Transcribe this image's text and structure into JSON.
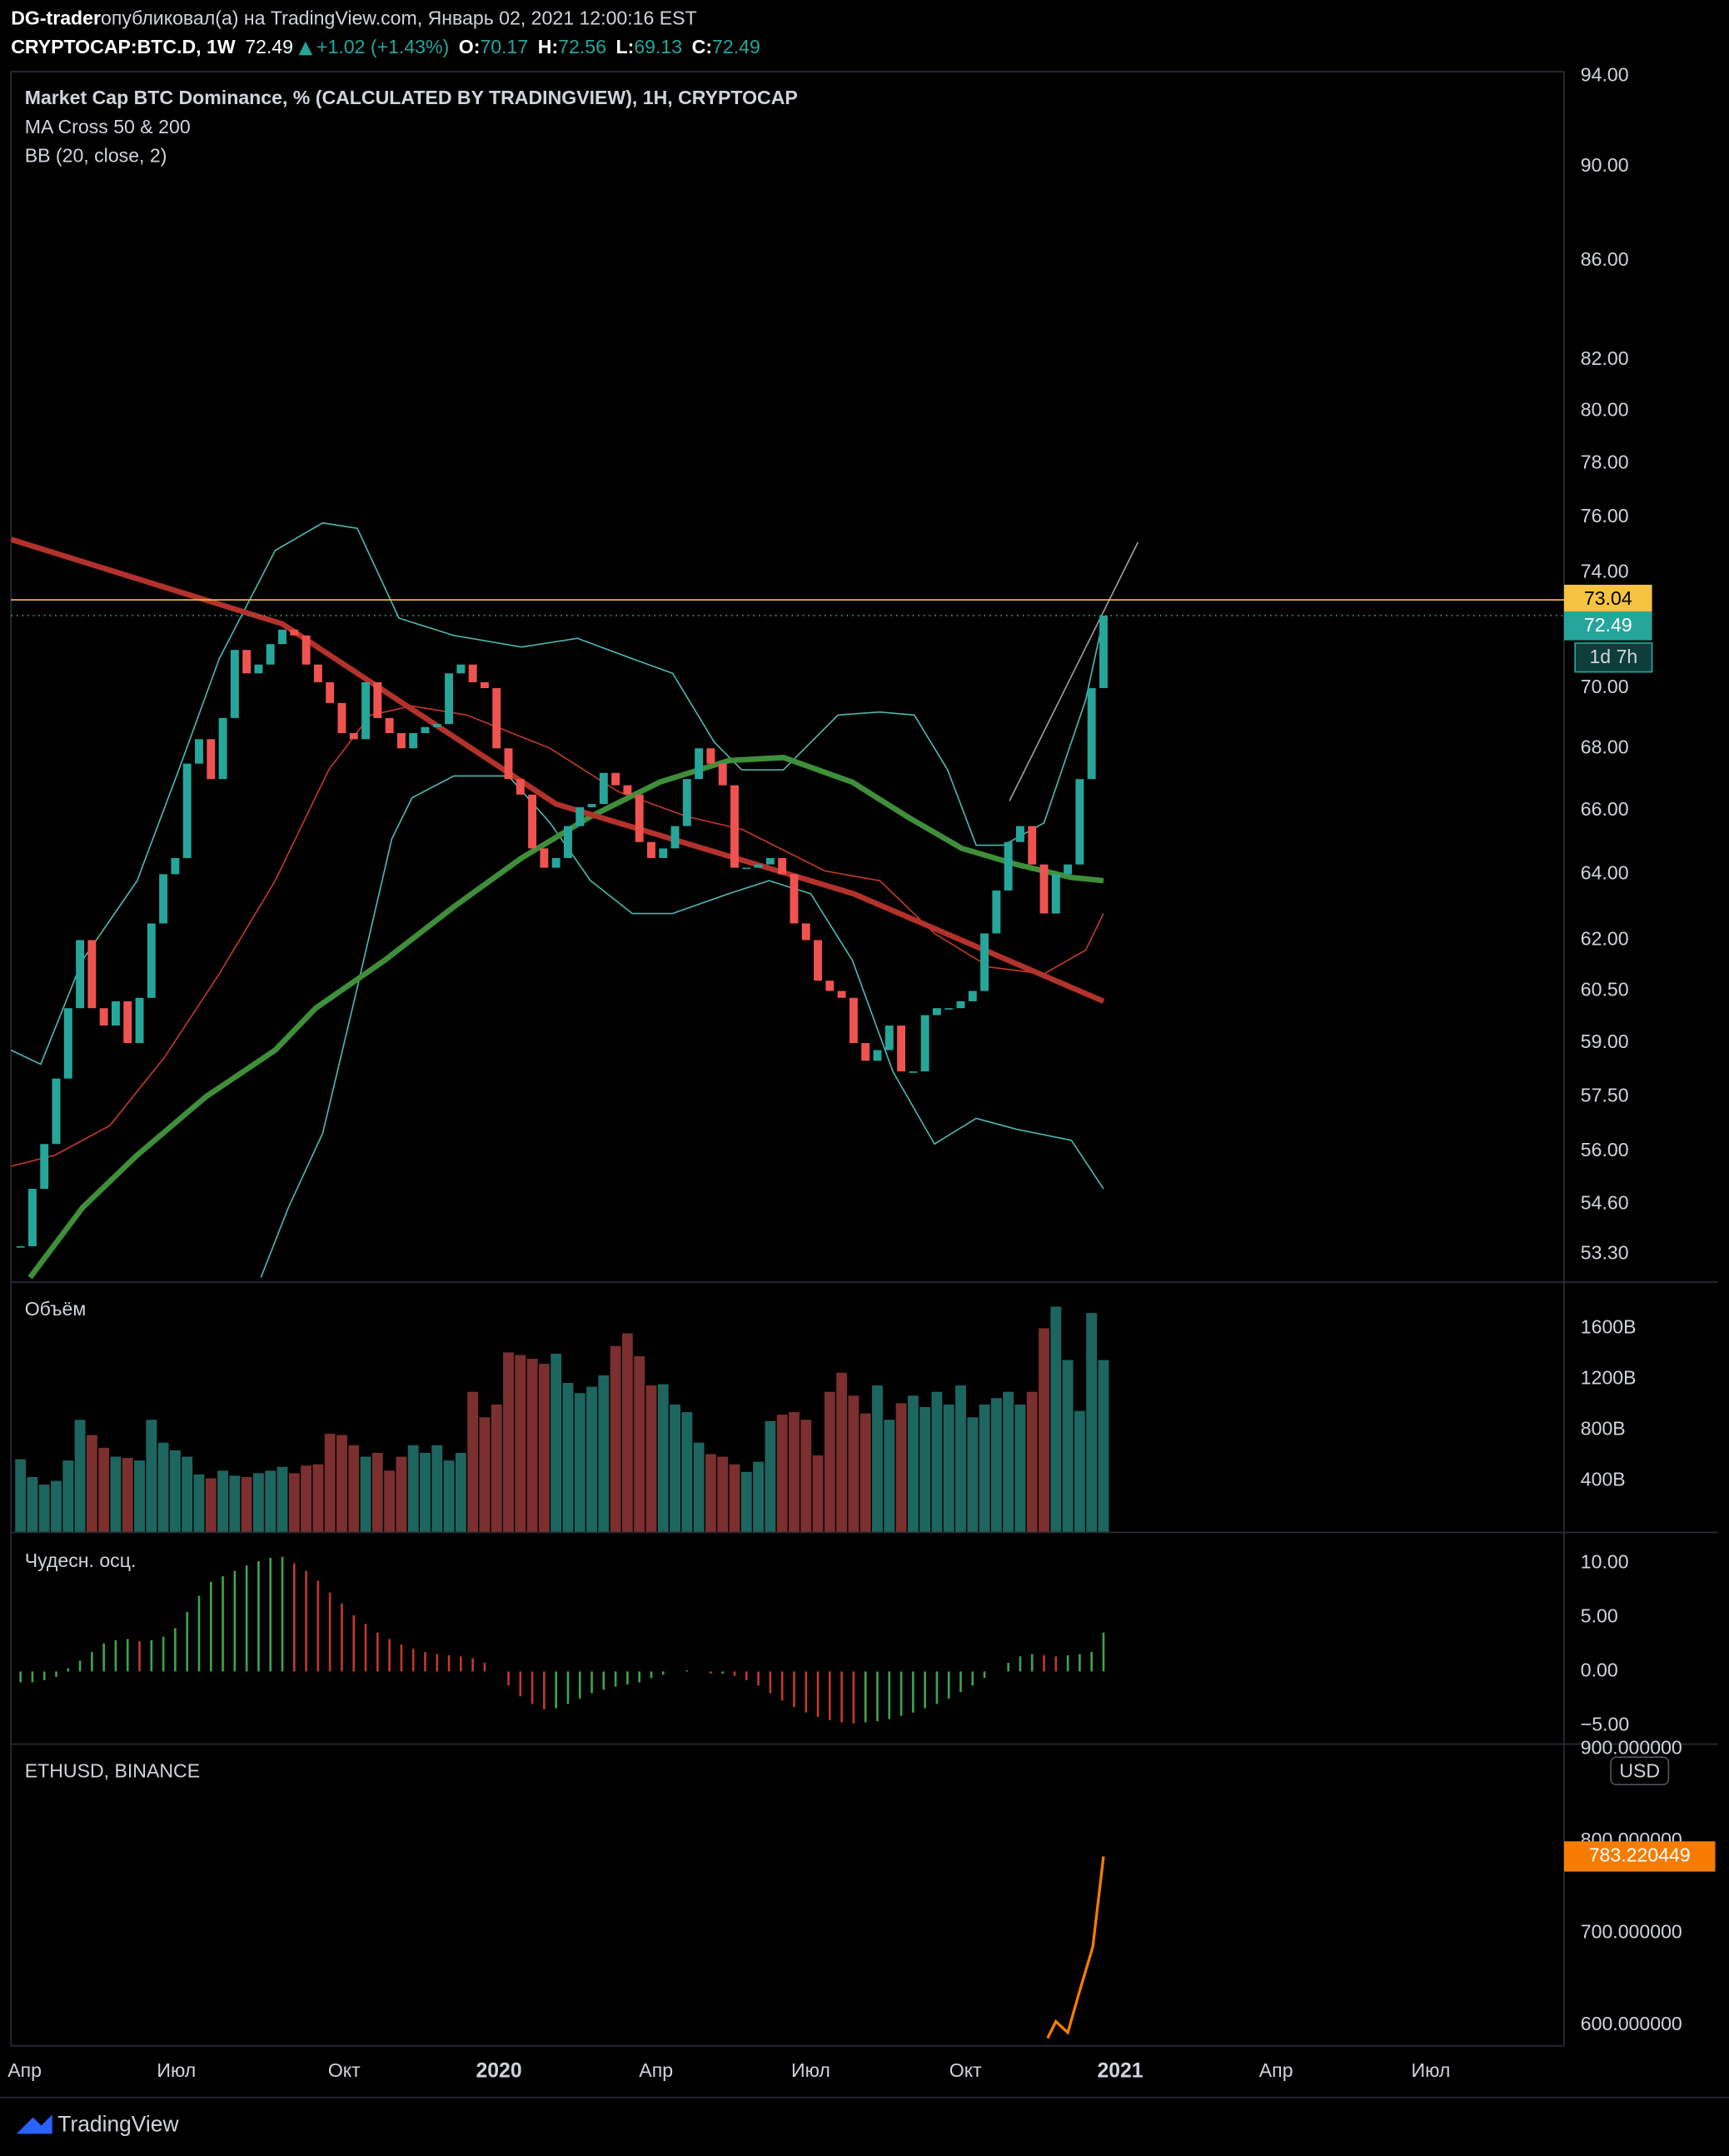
{
  "header": {
    "author": "DG-trader",
    "published": " опубликовал(а) на TradingView.com, Январь 02, 2021 12:00:16 EST",
    "symbol": "CRYPTOCAP:BTC.D, 1W",
    "last": "72.49",
    "change": "+1.02 (+1.43%)",
    "ohlc": [
      {
        "label": "O:",
        "value": "70.17"
      },
      {
        "label": "H:",
        "value": "72.56"
      },
      {
        "label": "L:",
        "value": "69.13"
      },
      {
        "label": "C:",
        "value": "72.49"
      }
    ]
  },
  "chart_data": [
    {
      "type": "candlestick",
      "title": "Market Cap BTC Dominance, % (CALCULATED BY TRADINGVIEW), 1H, CRYPTOCAP",
      "indicators": [
        "MA Cross 50 & 200",
        "BB (20, close, 2)"
      ],
      "close": [
        53.5,
        55,
        56.2,
        58,
        60,
        62,
        60,
        59.5,
        60.2,
        59,
        60.3,
        62.5,
        64,
        64.5,
        67.5,
        68.3,
        67,
        69,
        71.3,
        70.5,
        70.8,
        71.5,
        72,
        71.8,
        70.8,
        70.2,
        69.5,
        68.5,
        68.3,
        70.2,
        69,
        68.5,
        68,
        68.5,
        68.7,
        68.8,
        70.5,
        70.8,
        70.2,
        70,
        68,
        67,
        66.5,
        64.8,
        64.2,
        64.5,
        65.5,
        66.1,
        66.2,
        67.2,
        66.8,
        66.5,
        65,
        64.5,
        64.8,
        65.5,
        67,
        68,
        67.5,
        66.8,
        64.2,
        64.2,
        64.3,
        64.5,
        64,
        62.5,
        62,
        60.8,
        60.5,
        60.3,
        59,
        58.5,
        58.8,
        59.5,
        58.2,
        58.2,
        59.8,
        60,
        60,
        60.2,
        60.5,
        62.2,
        63.5,
        65,
        65.5,
        64.3,
        62.8,
        64,
        64.3,
        67,
        70,
        72.49
      ],
      "up_color": "#26a69a",
      "down_color": "#ef5350",
      "log_scale": true,
      "ylim": [
        52.6,
        94.2
      ],
      "yticks": [
        {
          "value": 94,
          "label": "94.00"
        },
        {
          "value": 90,
          "label": "90.00"
        },
        {
          "value": 86,
          "label": "86.00"
        },
        {
          "value": 82,
          "label": "82.00"
        },
        {
          "value": 80,
          "label": "80.00"
        },
        {
          "value": 78,
          "label": "78.00"
        },
        {
          "value": 76,
          "label": "76.00"
        },
        {
          "value": 74,
          "label": "74.00"
        },
        {
          "value": 70,
          "label": "70.00"
        },
        {
          "value": 68,
          "label": "68.00"
        },
        {
          "value": 66,
          "label": "66.00"
        },
        {
          "value": 64,
          "label": "64.00"
        },
        {
          "value": 62,
          "label": "62.00"
        },
        {
          "value": 60.5,
          "label": "60.50"
        },
        {
          "value": 59,
          "label": "59.00"
        },
        {
          "value": 57.5,
          "label": "57.50"
        },
        {
          "value": 56,
          "label": "56.00"
        },
        {
          "value": 54.6,
          "label": "54.60"
        },
        {
          "value": 53.3,
          "label": "53.30"
        }
      ],
      "xlim": [
        -0.8,
        129.7
      ],
      "xticks": [
        {
          "value": 0.35,
          "label": "Апр"
        },
        {
          "value": 13.1,
          "label": "Июл"
        },
        {
          "value": 27.2,
          "label": "Окт"
        },
        {
          "value": 40.2,
          "label": "2020"
        },
        {
          "value": 53.4,
          "label": "Апр"
        },
        {
          "value": 66.4,
          "label": "Июл"
        },
        {
          "value": 79.4,
          "label": "Окт"
        },
        {
          "value": 92.4,
          "label": "2021"
        },
        {
          "value": 105.5,
          "label": "Апр"
        },
        {
          "value": 118.5,
          "label": "Июл"
        }
      ],
      "lines": [
        {
          "color": "#4db6ac",
          "width": 1,
          "x": [
            -0.8,
            1.7,
            5.2,
            9.8,
            13.3,
            16.7,
            21.4,
            25.4,
            28.3,
            31.8,
            36.4,
            42.1,
            46.8,
            51.4,
            54.8,
            58.3,
            60.6,
            64.1,
            68.7,
            72.2,
            75.1,
            77.9,
            80.3,
            82.6,
            86,
            89.5,
            91
          ],
          "values": [
            58.8,
            58.4,
            61.4,
            63.8,
            67.3,
            71,
            74.8,
            75.8,
            75.6,
            72.4,
            71.8,
            71.4,
            71.7,
            71,
            70.5,
            68.2,
            67.3,
            67.3,
            69.1,
            69.2,
            69.1,
            67.3,
            64.9,
            64.9,
            65.6,
            69.6,
            72.4
          ]
        },
        {
          "color": "#4db6ac",
          "width": 1,
          "x": [
            20.2,
            22.5,
            25.4,
            28.3,
            31.2,
            32.9,
            36.4,
            41,
            44.5,
            47.9,
            51.4,
            54.8,
            59.5,
            62.9,
            66.4,
            69.9,
            73.3,
            76.8,
            80.3,
            83.7,
            88.3,
            91
          ],
          "values": [
            52.7,
            54.5,
            56.5,
            60.6,
            65.1,
            66.4,
            67.1,
            67.1,
            65.6,
            63.8,
            62.8,
            62.8,
            63.4,
            63.8,
            63.4,
            61.4,
            58.2,
            56.2,
            56.9,
            56.6,
            56.3,
            55
          ]
        },
        {
          "color": "#c0392b",
          "width": 1,
          "x": [
            -0.8,
            2.9,
            7.5,
            12.1,
            16.7,
            21.4,
            25.9,
            29.4,
            32.9,
            37.5,
            44.5,
            50.2,
            56,
            60.6,
            67.6,
            72.2,
            76.8,
            81.4,
            86,
            89.5,
            91
          ],
          "values": [
            55.6,
            55.9,
            56.7,
            58.6,
            61,
            63.8,
            67.3,
            69.1,
            69.4,
            69.1,
            68,
            66.6,
            65.8,
            65.4,
            64.1,
            63.8,
            62.2,
            61.2,
            61,
            61.7,
            62.8
          ]
        },
        {
          "color": "#3f8f3a",
          "width": 4,
          "x": [
            0.8,
            5.2,
            9.8,
            15.6,
            21.4,
            24.8,
            30.6,
            36.4,
            42.1,
            47.9,
            53.7,
            59.5,
            64.1,
            69.9,
            74.5,
            79.1,
            83.7,
            88.3,
            91
          ],
          "values": [
            52.7,
            54.5,
            55.9,
            57.5,
            58.8,
            60,
            61.4,
            63,
            64.5,
            65.8,
            66.9,
            67.6,
            67.7,
            66.9,
            65.8,
            64.8,
            64.3,
            63.9,
            63.8
          ]
        },
        {
          "color": "#b3322b",
          "width": 4,
          "x": [
            -0.8,
            22,
            45,
            70,
            91
          ],
          "values": [
            75.2,
            72.2,
            66.2,
            63.4,
            60.2
          ]
        },
        {
          "color": "#9e9e9e",
          "width": 1,
          "x": [
            83.1,
            93.9
          ],
          "values": [
            66.3,
            75.1
          ]
        }
      ],
      "levels": [
        {
          "value": 73.04,
          "color": "#f5c242",
          "text_color": "#000000"
        },
        {
          "value": 72.49,
          "color": "#26a69a",
          "text_color": "#ffffff",
          "dotted": true
        }
      ],
      "countdown": "1d 7h"
    },
    {
      "type": "bar",
      "title": "Объём",
      "values": [
        570,
        430,
        370,
        400,
        560,
        880,
        760,
        660,
        590,
        580,
        560,
        880,
        700,
        640,
        590,
        450,
        420,
        480,
        440,
        430,
        460,
        480,
        510,
        460,
        520,
        530,
        770,
        760,
        680,
        590,
        620,
        480,
        590,
        680,
        620,
        680,
        560,
        620,
        1100,
        900,
        1000,
        1410,
        1390,
        1360,
        1320,
        1400,
        1170,
        1090,
        1140,
        1230,
        1460,
        1560,
        1380,
        1150,
        1160,
        1000,
        940,
        700,
        610,
        590,
        530,
        470,
        550,
        870,
        920,
        940,
        880,
        600,
        1100,
        1250,
        1070,
        930,
        1150,
        880,
        1010,
        1070,
        980,
        1100,
        1000,
        1150,
        900,
        1000,
        1050,
        1100,
        1000,
        1100,
        1600,
        1770,
        1350,
        950,
        1720,
        1350
      ],
      "up_color": "#1d6660",
      "down_color": "#7b2f2e",
      "ylim": [
        0,
        1957
      ],
      "yticks": [
        {
          "value": 400,
          "label": "400B"
        },
        {
          "value": 800,
          "label": "800B"
        },
        {
          "value": 1200,
          "label": "1200B"
        },
        {
          "value": 1600,
          "label": "1600B"
        }
      ]
    },
    {
      "type": "histogram",
      "title": "Чудесн. осц.",
      "values": [
        -1,
        -1,
        -0.8,
        -0.5,
        0.3,
        1,
        1.8,
        2.6,
        2.9,
        3,
        2.8,
        2.9,
        3.2,
        4,
        5.5,
        7,
        8.3,
        8.8,
        9.3,
        9.8,
        10.2,
        10.5,
        10.6,
        10,
        9.3,
        8.4,
        7.3,
        6.3,
        5.2,
        4.4,
        3.6,
        3,
        2.5,
        2.1,
        1.8,
        1.6,
        1.5,
        1.4,
        1.2,
        0.8,
        0,
        -1.3,
        -2.3,
        -3,
        -3.5,
        -3.4,
        -3,
        -2.5,
        -2,
        -1.7,
        -1.4,
        -1.2,
        -1,
        -0.6,
        -0.3,
        0,
        0.1,
        0,
        -0.2,
        -0.2,
        -0.4,
        -0.8,
        -1.3,
        -2,
        -2.7,
        -3.3,
        -3.8,
        -4.2,
        -4.5,
        -4.7,
        -4.8,
        -4.7,
        -4.6,
        -4.4,
        -4.1,
        -3.8,
        -3.4,
        -3,
        -2.5,
        -1.9,
        -1.3,
        -0.6,
        0,
        0.8,
        1.4,
        1.6,
        1.5,
        1.4,
        1.5,
        1.6,
        1.8,
        3.6
      ],
      "up_color": "#3fa34d",
      "down_color": "#c0392b",
      "ylim": [
        -6.65,
        12.8
      ],
      "yticks": [
        {
          "value": 10,
          "label": "10.00"
        },
        {
          "value": 5,
          "label": "5.00"
        },
        {
          "value": 0,
          "label": "0.00"
        },
        {
          "value": -5,
          "label": "−5.00"
        }
      ]
    },
    {
      "type": "line",
      "title": "ETHUSD, BINANCE",
      "unit": "USD",
      "x": [
        86.3,
        87,
        88,
        88.9,
        90.1,
        91
      ],
      "values": [
        586,
        604,
        592,
        633,
        685,
        783.220449
      ],
      "color": "#f57c00",
      "ylim": [
        577.6,
        903
      ],
      "yticks": [
        {
          "value": 900,
          "label": "900.000000"
        },
        {
          "value": 800,
          "label": "800.000000"
        },
        {
          "value": 700,
          "label": "700.000000"
        },
        {
          "value": 600,
          "label": "600.000000"
        }
      ]
    }
  ],
  "footer": {
    "brand": "TradingView"
  }
}
